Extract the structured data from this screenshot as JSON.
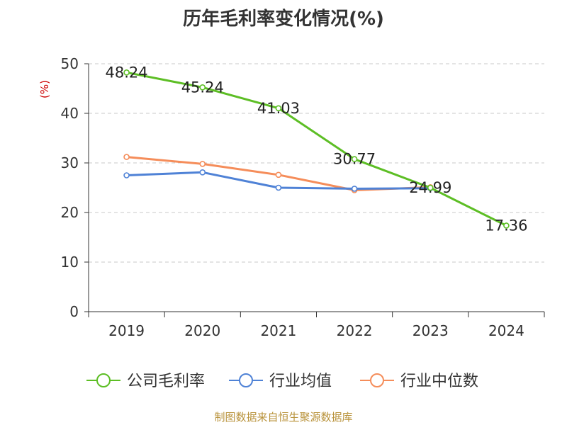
{
  "chart_data": {
    "type": "line",
    "title": "历年毛利率变化情况(%)",
    "ylabel": "(%)",
    "xlabel": "",
    "categories": [
      "2019",
      "2020",
      "2021",
      "2022",
      "2023",
      "2024"
    ],
    "y_ticks": [
      "0",
      "10",
      "20",
      "30",
      "40",
      "50"
    ],
    "ylim": [
      0,
      50
    ],
    "grid": true,
    "legend_position": "bottom",
    "series": [
      {
        "name": "公司毛利率",
        "color": "#5dbe25",
        "values": [
          48.24,
          45.24,
          41.03,
          30.77,
          24.99,
          17.36
        ],
        "labels": [
          "48.24",
          "45.24",
          "41.03",
          "30.77",
          "24.99",
          "17.36"
        ]
      },
      {
        "name": "行业均值",
        "color": "#4f82d6",
        "values": [
          27.5,
          28.1,
          25.0,
          24.8,
          24.9,
          null
        ]
      },
      {
        "name": "行业中位数",
        "color": "#f58d5a",
        "values": [
          31.2,
          29.8,
          27.6,
          24.5,
          25.1,
          null
        ]
      }
    ]
  },
  "source": "制图数据来自恒生聚源数据库"
}
